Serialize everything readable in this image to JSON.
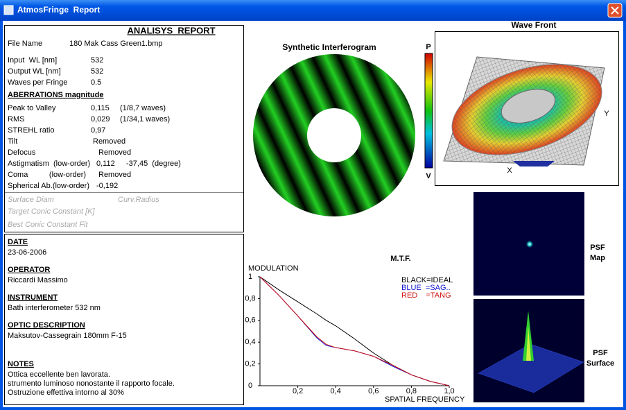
{
  "window": {
    "title": "AtmosFringe  Report"
  },
  "report": {
    "title": "ANALISYS  REPORT",
    "rows": [
      {
        "label": "File Name",
        "value": "180 Mak Cass Green1.bmp"
      },
      {
        "label": "Input  WL [nm]",
        "value": "532"
      },
      {
        "label": "Output WL [nm]",
        "value": "532"
      },
      {
        "label": "Waves per Fringe",
        "value": "0.5"
      }
    ],
    "aberrations_title": "ABERRATIONS magnitude",
    "aberrations": [
      {
        "label": "Peak to Valley",
        "value": "0,115",
        "extra": "(1/8,7 waves)"
      },
      {
        "label": "RMS",
        "value": "0,029",
        "extra": "(1/34,1 waves)"
      },
      {
        "label": "STREHL ratio",
        "value": "0,97"
      },
      {
        "label": "Tilt",
        "value": "Removed"
      },
      {
        "label": "Defocus",
        "value": "Removed"
      },
      {
        "label": "Astigmatism  (low-order)",
        "value": "0,112",
        "extra": "-37,45  (degree)"
      },
      {
        "label": "Coma          (low-order)",
        "value": "Removed"
      },
      {
        "label": "Spherical Ab.(low-order)",
        "value": "-0,192"
      }
    ],
    "disabled": [
      "Surface Diam",
      "Curv.Radius",
      "Target Conic Constant [K]",
      "Best Conic Constant Fit"
    ]
  },
  "info": [
    {
      "heading": "DATE",
      "lines": [
        "23-06-2006"
      ]
    },
    {
      "heading": "OPERATOR",
      "lines": [
        "Riccardi Massimo"
      ]
    },
    {
      "heading": "INSTRUMENT",
      "lines": [
        "Bath interferometer 532 nm"
      ]
    },
    {
      "heading": "OPTIC DESCRIPTION",
      "lines": [
        "Maksutov-Cassegrain 180mm F-15"
      ]
    },
    {
      "heading": "NOTES",
      "lines": [
        "Ottica eccellente ben lavorata.",
        "strumento luminoso nonostante il rapporto focale.",
        "Ostruzione effettiva intorno al 30%"
      ]
    }
  ],
  "interferogram": {
    "title": "Synthetic Interferogram",
    "scale_top": "P",
    "scale_bottom": "V"
  },
  "wavefront": {
    "title": "Wave Front",
    "x_label": "X",
    "y_label": "Y"
  },
  "psf": {
    "map_label": [
      "PSF",
      "Map"
    ],
    "surface_label": [
      "PSF",
      "Surface"
    ]
  },
  "chart_data": {
    "type": "line",
    "title": "M.T.F.",
    "y_label": "MODULATION",
    "x_label": "SPATIAL FREQUENCY",
    "x": [
      0,
      0.1,
      0.2,
      0.3,
      0.35,
      0.4,
      0.5,
      0.6,
      0.7,
      0.8,
      0.9,
      1
    ],
    "series": [
      {
        "name": "BLACK=IDEAL",
        "color": "#000000",
        "values": [
          1,
          0.88,
          0.77,
          0.66,
          0.6,
          0.55,
          0.43,
          0.3,
          0.19,
          0.1,
          0.04,
          0
        ]
      },
      {
        "name": "BLUE  =SAG..",
        "color": "#1010d0",
        "values": [
          1,
          0.83,
          0.64,
          0.44,
          0.37,
          0.35,
          0.32,
          0.27,
          0.18,
          0.1,
          0.04,
          0
        ]
      },
      {
        "name": "RED    =TANG",
        "color": "#d01010",
        "values": [
          1,
          0.83,
          0.64,
          0.45,
          0.38,
          0.35,
          0.32,
          0.27,
          0.19,
          0.1,
          0.04,
          0
        ]
      }
    ],
    "xlim": [
      0,
      1
    ],
    "ylim": [
      0,
      1
    ],
    "xticks": [
      {
        "value": 0.2,
        "label": "0,2"
      },
      {
        "value": 0.4,
        "label": "0,4"
      },
      {
        "value": 0.6,
        "label": "0,6"
      },
      {
        "value": 0.8,
        "label": "0,8"
      },
      {
        "value": 1,
        "label": "1,0"
      }
    ],
    "yticks": [
      0,
      {
        "value": 0.2,
        "label": "0,2"
      },
      {
        "value": 0.4,
        "label": "0,4"
      },
      {
        "value": 0.6,
        "label": "0,6"
      },
      {
        "value": 0.8,
        "label": "0,8"
      },
      1
    ]
  }
}
